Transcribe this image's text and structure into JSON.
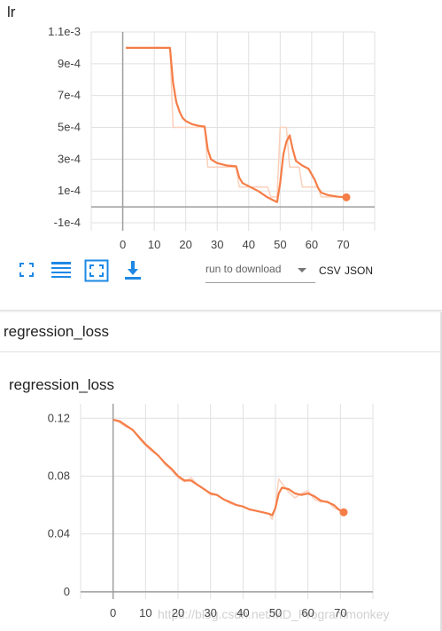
{
  "lr_card": {
    "title": "lr",
    "toolbar": {
      "fit_icon": "fit-domain-icon",
      "log_icon": "log-scale-icon",
      "expand_icon": "expand-chart-icon",
      "download_icon": "download-icon",
      "download_select": "run to download",
      "csv_label": "CSV",
      "json_label": "JSON",
      "icon_color": "#1e88e5"
    }
  },
  "group_header": "regression_loss",
  "loss_card": {
    "title": "regression_loss"
  },
  "watermark": "https://blog.csdn.net/MD_Programmonkey",
  "colors": {
    "series": "#f57d47",
    "series_faint": "#fbd0bb",
    "grid": "#e0e0e0",
    "axis": "#9e9e9e"
  },
  "chart_data": [
    {
      "type": "line",
      "title": "lr",
      "xlim": [
        -10,
        80
      ],
      "ylim": [
        -0.00015,
        0.0011
      ],
      "xticks": [
        0,
        10,
        20,
        30,
        40,
        50,
        60,
        70
      ],
      "xtick_labels": [
        "0",
        "10",
        "20",
        "30",
        "40",
        "50",
        "60",
        "70"
      ],
      "yticks": [
        0.0011,
        0.0009,
        0.0007,
        0.0005,
        0.0003,
        0.0001,
        -0.0001
      ],
      "ytick_labels": [
        "1.1e-3",
        "9e-4",
        "7e-4",
        "5e-4",
        "3e-4",
        "1e-4",
        "-1e-4"
      ],
      "grid": true,
      "series": [
        {
          "role": "raw",
          "x": [
            1,
            15,
            16,
            26,
            27,
            36,
            37,
            46,
            47,
            49,
            50,
            52,
            53,
            56,
            57,
            62,
            63,
            71
          ],
          "y": [
            0.001,
            0.001,
            0.0005,
            0.0005,
            0.00025,
            0.00025,
            0.000125,
            0.000125,
            6.25e-05,
            6.25e-05,
            0.0005,
            0.0005,
            0.00025,
            0.00025,
            0.000125,
            0.000125,
            6.25e-05,
            6.25e-05
          ]
        },
        {
          "role": "smoothed",
          "x": [
            1,
            15,
            16,
            17,
            18,
            19,
            20,
            22,
            24,
            26,
            27,
            28,
            30,
            33,
            36,
            37,
            38,
            40,
            43,
            46,
            48,
            49,
            50,
            51,
            52,
            53,
            54,
            55,
            57,
            59,
            61,
            62,
            63,
            65,
            68,
            71
          ],
          "y": [
            0.001,
            0.001,
            0.00078,
            0.00066,
            0.0006,
            0.00056,
            0.00054,
            0.00052,
            0.00051,
            0.000505,
            0.00036,
            0.0003,
            0.000275,
            0.00026,
            0.000255,
            0.000185,
            0.00015,
            0.00013,
            0.0001,
            6e-05,
            4e-05,
            3e-05,
            0.00015,
            0.00033,
            0.00041,
            0.00045,
            0.00036,
            0.00029,
            0.00026,
            0.00024,
            0.00017,
            0.00012,
            9e-05,
            7.5e-05,
            6.5e-05,
            6e-05
          ]
        }
      ]
    },
    {
      "type": "line",
      "title": "regression_loss",
      "xlim": [
        -10,
        80
      ],
      "ylim": [
        -0.005,
        0.13
      ],
      "xticks": [
        0,
        10,
        20,
        30,
        40,
        50,
        60,
        70
      ],
      "xtick_labels": [
        "0",
        "10",
        "20",
        "30",
        "40",
        "50",
        "60",
        "70"
      ],
      "yticks": [
        0.12,
        0.08,
        0.04,
        0
      ],
      "ytick_labels": [
        "0.12",
        "0.08",
        "0.04",
        "0"
      ],
      "grid": true,
      "series": [
        {
          "role": "raw",
          "x": [
            0,
            2,
            4,
            6,
            8,
            10,
            12,
            14,
            16,
            18,
            20,
            22,
            24,
            26,
            28,
            30,
            32,
            34,
            36,
            38,
            40,
            42,
            44,
            46,
            48,
            49,
            50,
            51,
            52,
            54,
            56,
            58,
            60,
            62,
            64,
            66,
            68,
            70,
            71
          ],
          "y": [
            0.119,
            0.117,
            0.114,
            0.112,
            0.106,
            0.101,
            0.097,
            0.094,
            0.088,
            0.084,
            0.079,
            0.076,
            0.079,
            0.074,
            0.071,
            0.067,
            0.067,
            0.064,
            0.061,
            0.06,
            0.059,
            0.057,
            0.056,
            0.055,
            0.054,
            0.05,
            0.06,
            0.078,
            0.075,
            0.069,
            0.065,
            0.068,
            0.07,
            0.064,
            0.062,
            0.063,
            0.058,
            0.056,
            0.055
          ]
        },
        {
          "role": "smoothed",
          "x": [
            0,
            2,
            4,
            6,
            8,
            10,
            12,
            14,
            16,
            18,
            20,
            22,
            24,
            26,
            28,
            30,
            32,
            34,
            36,
            38,
            40,
            42,
            44,
            46,
            48,
            49,
            50,
            51,
            52,
            54,
            56,
            58,
            60,
            62,
            64,
            66,
            68,
            70,
            71
          ],
          "y": [
            0.119,
            0.118,
            0.115,
            0.112,
            0.107,
            0.102,
            0.098,
            0.094,
            0.089,
            0.085,
            0.08,
            0.077,
            0.077,
            0.074,
            0.071,
            0.068,
            0.067,
            0.064,
            0.062,
            0.06,
            0.059,
            0.057,
            0.056,
            0.055,
            0.054,
            0.053,
            0.058,
            0.068,
            0.072,
            0.071,
            0.068,
            0.067,
            0.068,
            0.066,
            0.063,
            0.062,
            0.06,
            0.056,
            0.055
          ]
        }
      ]
    }
  ]
}
